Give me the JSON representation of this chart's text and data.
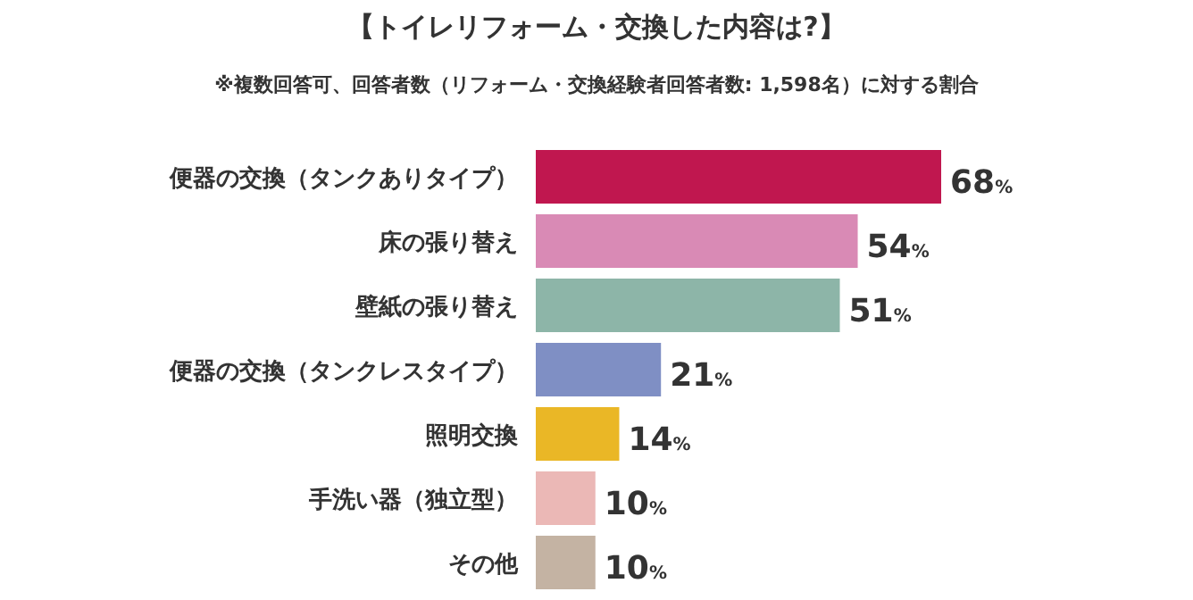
{
  "chart_data": {
    "type": "bar",
    "orientation": "horizontal",
    "title": "【トイレリフォーム・交換した内容は?】",
    "subtitle": "※複数回答可、回答者数（リフォーム・交換経験者回答者数: 1,598名）に対する割合",
    "categories": [
      "便器の交換（タンクありタイプ）",
      "床の張り替え",
      "壁紙の張り替え",
      "便器の交換（タンクレスタイプ）",
      "照明交換",
      "手洗い器（独立型）",
      "その他"
    ],
    "values": [
      68,
      54,
      51,
      21,
      14,
      10,
      10
    ],
    "colors": [
      "#c0174f",
      "#d98ab5",
      "#8db5a8",
      "#7f8fc4",
      "#eab726",
      "#ebb8b6",
      "#c4b3a3"
    ],
    "value_labels": [
      "68%",
      "54%",
      "51%",
      "21%",
      "14%",
      "10%",
      "10%"
    ]
  }
}
